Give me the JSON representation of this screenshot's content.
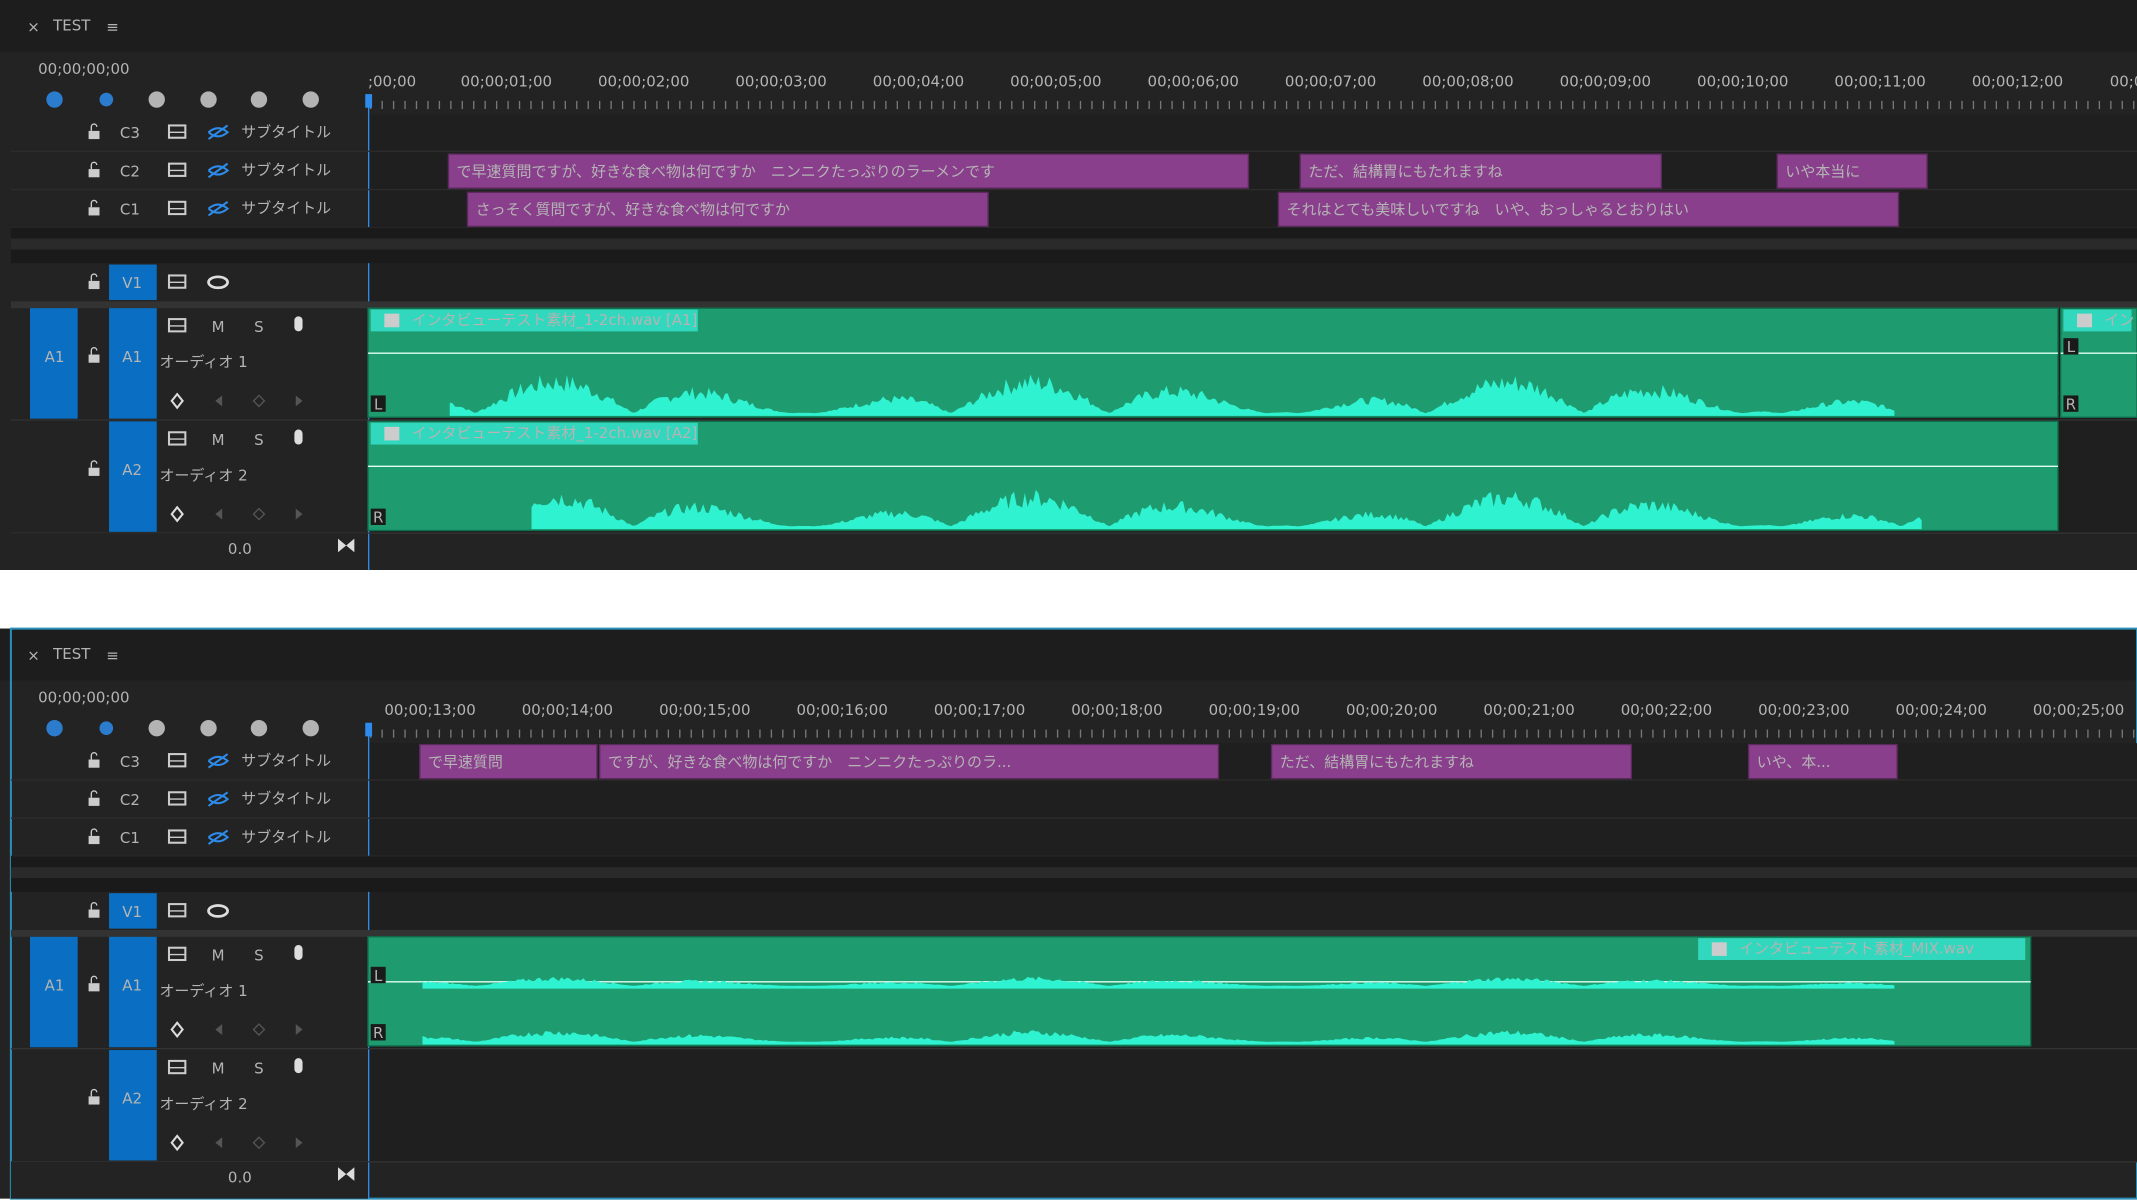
{
  "panels": [
    {
      "header": {
        "close": "×",
        "sequence": "TEST",
        "menu": "≡"
      },
      "timecode": "00;00;00;00",
      "ruler": [
        ";00;00",
        "00;00;01;00",
        "00;00;02;00",
        "00;00;03;00",
        "00;00;04;00",
        "00;00;05;00",
        "00;00;06;00",
        "00;00;07;00",
        "00;00;08;00",
        "00;00;09;00",
        "00;00;10;00",
        "00;00;11;00",
        "00;00;12;00",
        "00;0"
      ],
      "caption_tracks": [
        {
          "name": "C3",
          "label": "サブタイトル",
          "clips": []
        },
        {
          "name": "C2",
          "label": "サブタイトル",
          "clips": [
            "で早速質問ですが、好きな食べ物は何ですか　ニンニクたっぷりのラーメンです",
            "ただ、結構胃にもたれますね",
            "いや本当に"
          ]
        },
        {
          "name": "C1",
          "label": "サブタイトル",
          "clips": [
            "さっそく質問ですが、好きな食べ物は何ですか",
            "それはとても美味しいですね　いや、おっしゃるとおりはい"
          ]
        }
      ],
      "video_track": {
        "name": "V1"
      },
      "audio_tracks": [
        {
          "source": "A1",
          "name": "A1",
          "mute": "M",
          "solo": "S",
          "label": "オーディオ 1",
          "clips": [
            {
              "name": "インタビューテスト素材_1-2ch.wav [A1]",
              "channels": [
                "L"
              ]
            },
            {
              "name": "イン",
              "channels": [
                "L",
                "R"
              ]
            }
          ]
        },
        {
          "name": "A2",
          "mute": "M",
          "solo": "S",
          "label": "オーディオ 2",
          "clips": [
            {
              "name": "インタビューテスト素材_1-2ch.wav [A2]",
              "channels": [
                "R"
              ]
            }
          ]
        }
      ],
      "volume": "0.0"
    },
    {
      "header": {
        "close": "×",
        "sequence": "TEST",
        "menu": "≡"
      },
      "timecode": "00;00;00;00",
      "ruler": [
        "00;00;13;00",
        "00;00;14;00",
        "00;00;15;00",
        "00;00;16;00",
        "00;00;17;00",
        "00;00;18;00",
        "00;00;19;00",
        "00;00;20;00",
        "00;00;21;00",
        "00;00;22;00",
        "00;00;23;00",
        "00;00;24;00",
        "00;00;25;00"
      ],
      "caption_tracks": [
        {
          "name": "C3",
          "label": "サブタイトル",
          "clips": [
            "で早速質問",
            "ですが、好きな食べ物は何ですか　ニンニクたっぷりのラ...",
            "ただ、結構胃にもたれますね",
            "いや、本..."
          ]
        },
        {
          "name": "C2",
          "label": "サブタイトル",
          "clips": []
        },
        {
          "name": "C1",
          "label": "サブタイトル",
          "clips": []
        }
      ],
      "video_track": {
        "name": "V1"
      },
      "audio_tracks": [
        {
          "source": "A1",
          "name": "A1",
          "mute": "M",
          "solo": "S",
          "label": "オーディオ 1",
          "clips": [
            {
              "name": "インタビューテスト素材_MIX.wav",
              "channels": [
                "L",
                "R"
              ]
            }
          ]
        },
        {
          "name": "A2",
          "mute": "M",
          "solo": "S",
          "label": "オーディオ 2",
          "clips": []
        }
      ],
      "volume": "0.0"
    }
  ]
}
